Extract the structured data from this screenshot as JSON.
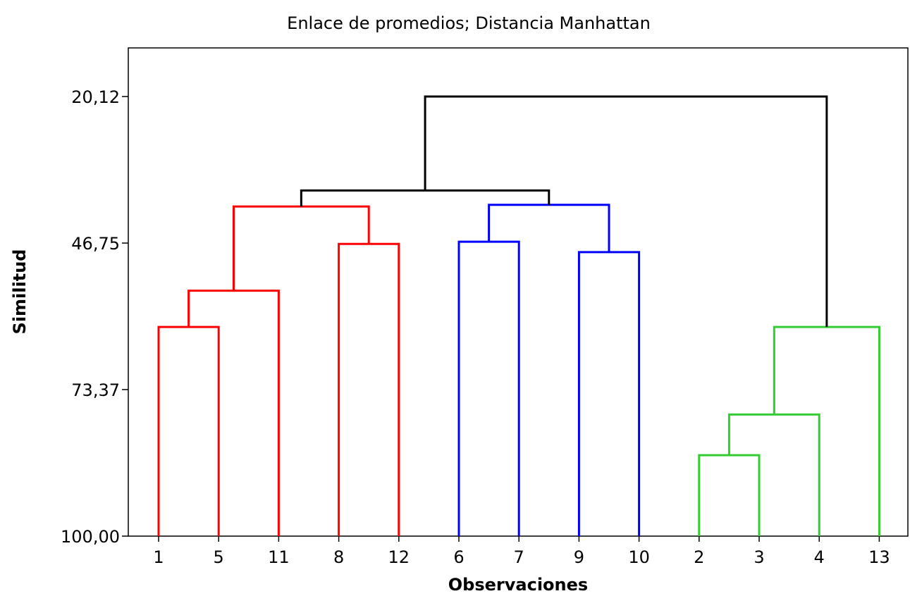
{
  "chart_data": {
    "type": "dendrogram",
    "title": "Enlace de promedios; Distancia Manhattan",
    "xlabel": "Observaciones",
    "ylabel": "Similitud",
    "ylim": [
      100.0,
      13.5
    ],
    "yticks": [
      "20,12",
      "46,75",
      "73,37",
      "100,00"
    ],
    "ytick_values": [
      20.12,
      46.75,
      73.37,
      100.0
    ],
    "leaf_order": [
      "1",
      "5",
      "11",
      "8",
      "12",
      "6",
      "7",
      "9",
      "10",
      "2",
      "3",
      "4",
      "13"
    ],
    "clusters": [
      {
        "color": "#ff0000",
        "leaves": [
          "1",
          "5",
          "11",
          "8",
          "12"
        ]
      },
      {
        "color": "#0000ff",
        "leaves": [
          "6",
          "7",
          "9",
          "10"
        ]
      },
      {
        "color": "#33cc33",
        "leaves": [
          "2",
          "3",
          "4",
          "13"
        ]
      }
    ],
    "link_color": "#000000",
    "merges": [
      {
        "left": "1",
        "right": "5",
        "similarity": 62.0,
        "color": "#ff0000"
      },
      {
        "left": "m1",
        "right": "11",
        "similarity": 55.4,
        "color": "#ff0000"
      },
      {
        "left": "8",
        "right": "12",
        "similarity": 46.9,
        "color": "#ff0000"
      },
      {
        "left": "m2",
        "right": "m3",
        "similarity": 40.1,
        "color": "#ff0000"
      },
      {
        "left": "6",
        "right": "7",
        "similarity": 46.5,
        "color": "#0000ff"
      },
      {
        "left": "9",
        "right": "10",
        "similarity": 48.4,
        "color": "#0000ff"
      },
      {
        "left": "m5",
        "right": "m6",
        "similarity": 39.8,
        "color": "#0000ff"
      },
      {
        "left": "m4",
        "right": "m7",
        "similarity": 37.2,
        "color": "#000000"
      },
      {
        "left": "2",
        "right": "3",
        "similarity": 85.3,
        "color": "#33cc33"
      },
      {
        "left": "m9",
        "right": "4",
        "similarity": 77.9,
        "color": "#33cc33"
      },
      {
        "left": "m10",
        "right": "13",
        "similarity": 62.0,
        "color": "#33cc33"
      },
      {
        "left": "m8",
        "right": "m11",
        "similarity": 20.12,
        "color": "#000000"
      }
    ]
  }
}
